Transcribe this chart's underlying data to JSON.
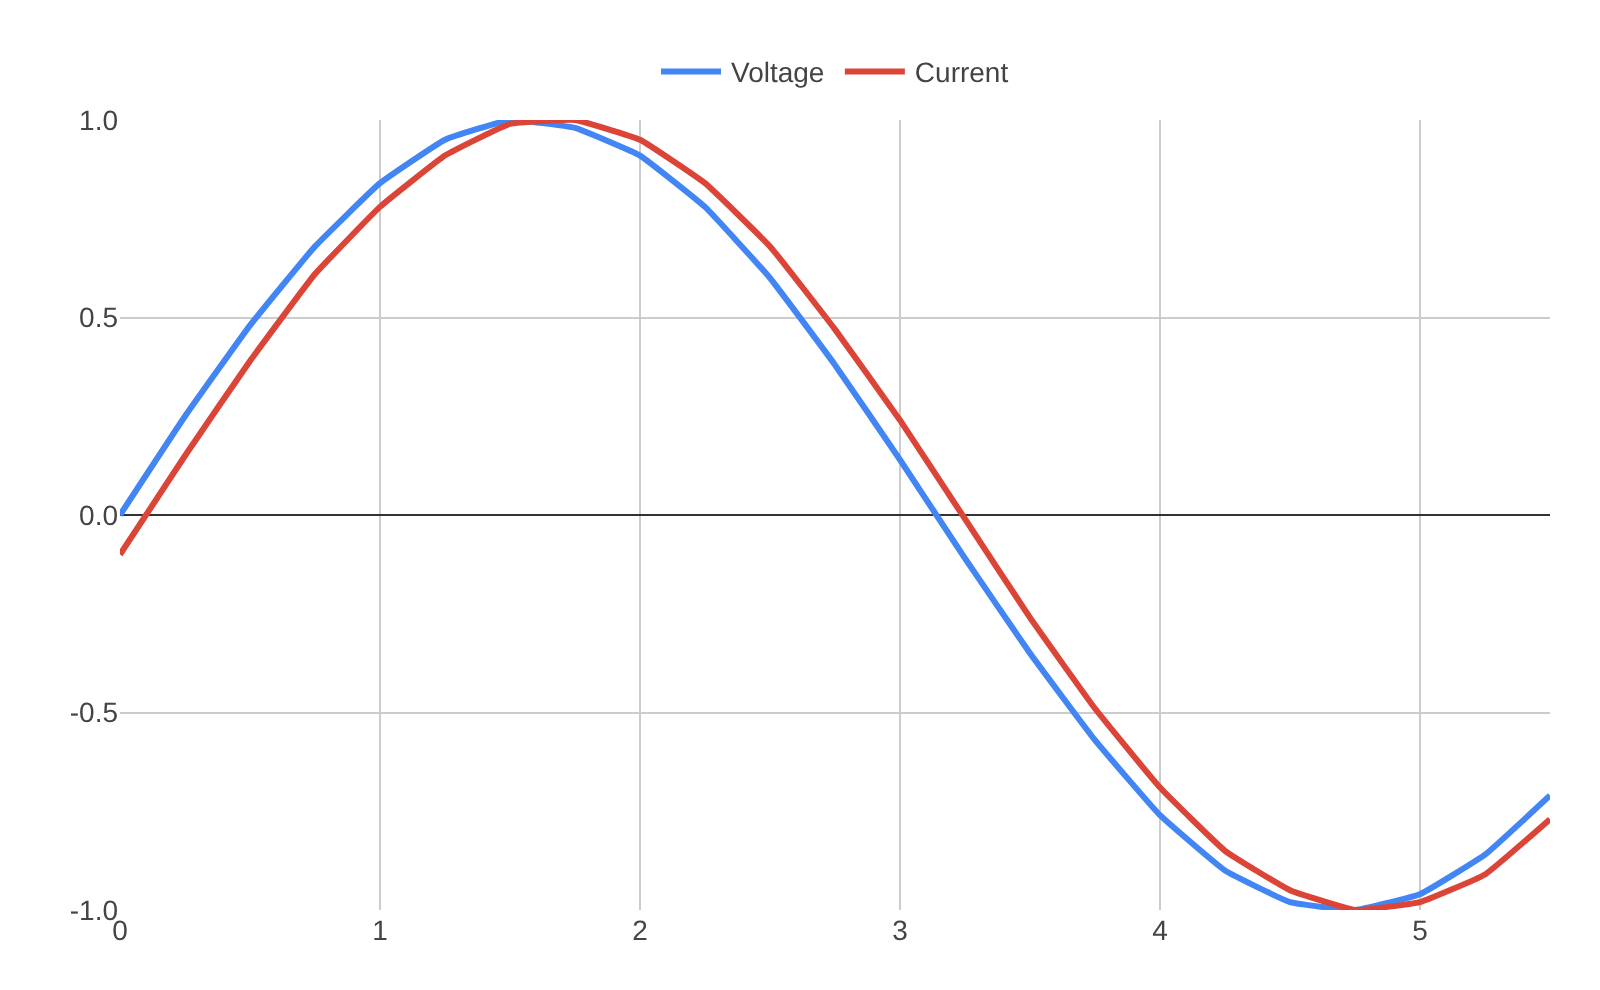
{
  "chart_data": {
    "type": "line",
    "x": [
      0,
      0.25,
      0.5,
      0.75,
      1,
      1.25,
      1.5,
      1.75,
      2,
      2.25,
      2.5,
      2.75,
      3,
      3.25,
      3.5,
      3.75,
      4,
      4.25,
      4.5,
      4.75,
      5,
      5.25,
      5.5
    ],
    "series": [
      {
        "name": "Voltage",
        "color": "#4285f4",
        "values": [
          0,
          0.25,
          0.48,
          0.68,
          0.84,
          0.95,
          1.0,
          0.98,
          0.91,
          0.78,
          0.6,
          0.38,
          0.14,
          -0.11,
          -0.35,
          -0.57,
          -0.76,
          -0.9,
          -0.98,
          -1.0,
          -0.96,
          -0.86,
          -0.71
        ]
      },
      {
        "name": "Current",
        "color": "#db4437",
        "values": [
          -0.1,
          0.15,
          0.39,
          0.61,
          0.78,
          0.91,
          0.99,
          1.0,
          0.95,
          0.84,
          0.68,
          0.47,
          0.24,
          -0.01,
          -0.26,
          -0.49,
          -0.69,
          -0.85,
          -0.95,
          -1.0,
          -0.98,
          -0.91,
          -0.77
        ]
      }
    ],
    "xlim": [
      0,
      5.5
    ],
    "xticks": [
      0,
      1,
      2,
      3,
      4,
      5
    ],
    "ylim": [
      -1,
      1
    ],
    "yticks": [
      {
        "value": -1,
        "label": "-1.0"
      },
      {
        "value": -0.5,
        "label": "-0.5"
      },
      {
        "value": 0,
        "label": "0.0"
      },
      {
        "value": 0.5,
        "label": "0.5"
      },
      {
        "value": 1,
        "label": "1.0"
      }
    ],
    "grid": true,
    "legend": "top",
    "marker": "none",
    "line_style": "solid"
  }
}
